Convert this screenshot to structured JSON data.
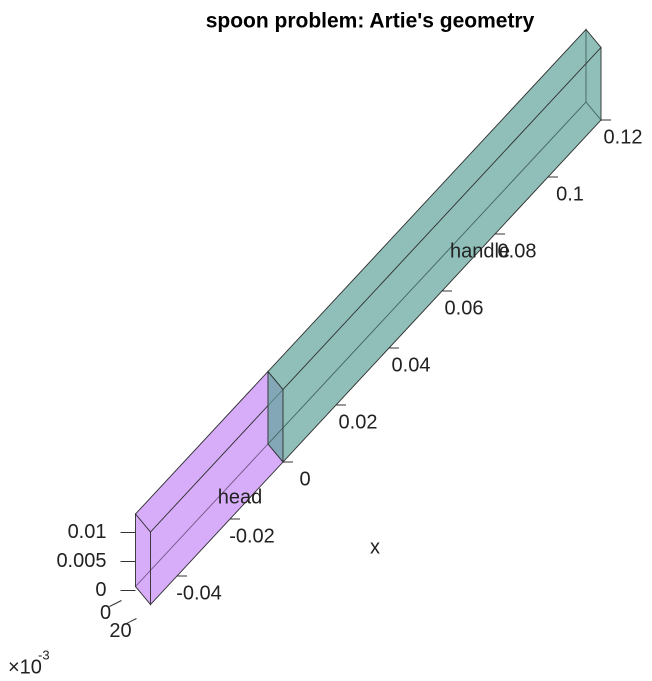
{
  "chart_data": {
    "type": "box3d",
    "title": "spoon problem: Artie's geometry",
    "xlabel": "x",
    "xticks": [
      -0.04,
      -0.02,
      0,
      0.02,
      0.04,
      0.06,
      0.08,
      0.1,
      0.12
    ],
    "yticks": [
      0,
      {
        "value": 0.02,
        "label": "20"
      }
    ],
    "zticks": [
      0,
      0.005,
      0.01
    ],
    "yexponent": "×10",
    "yexponent_power": "-3",
    "bodies": [
      {
        "name": "head",
        "color": "#c58af7",
        "x": [
          -0.05,
          0
        ],
        "y": [
          0,
          0.02
        ],
        "z": [
          0,
          0.0125
        ]
      },
      {
        "name": "handle",
        "color": "#5fa598",
        "x": [
          0,
          0.12
        ],
        "y": [
          0,
          0.02
        ],
        "z": [
          0,
          0.0125
        ]
      }
    ]
  }
}
